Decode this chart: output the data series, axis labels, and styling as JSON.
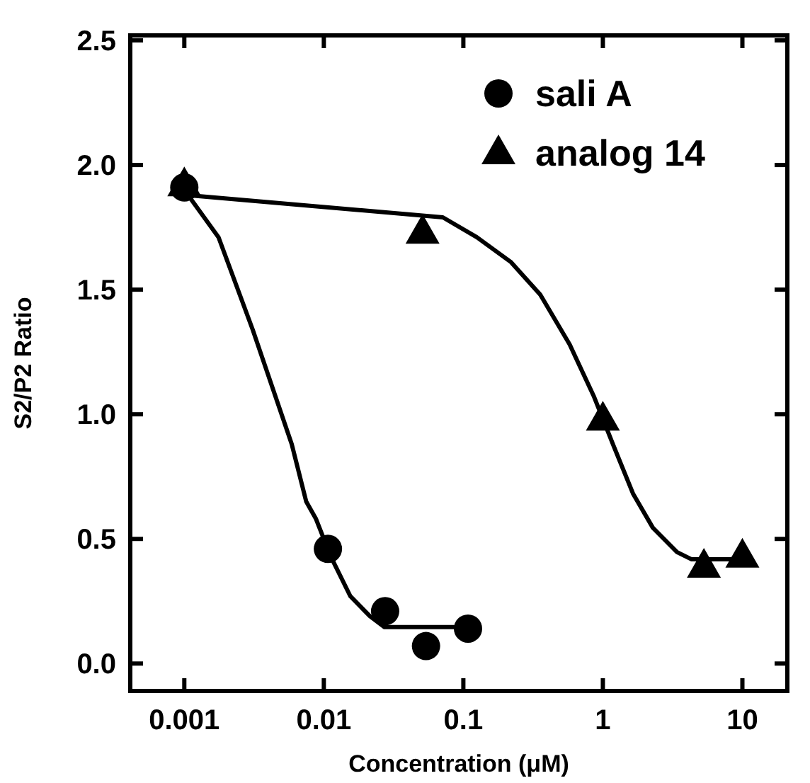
{
  "chart_data": {
    "type": "scatter",
    "xlabel": "Concentration (μM)",
    "ylabel": "S2/P2 Ratio",
    "log": "x",
    "xlim": [
      0.00041,
      21
    ],
    "xticks": [
      0.001,
      0.01,
      0.1,
      1,
      10
    ],
    "ylim": [
      -0.11,
      2.52
    ],
    "yticks": [
      {
        "value": 0,
        "label": "0.0"
      },
      0.5,
      {
        "value": 1,
        "label": "1.0"
      },
      1.5,
      {
        "value": 2,
        "label": "2.0"
      },
      2.5
    ],
    "grid": false,
    "legend": "top right",
    "series": [
      {
        "type": "line",
        "color": "#000000",
        "marker": "none",
        "x": [
          0.001,
          0.00176,
          0.00309,
          0.00589,
          0.00748,
          0.00879,
          0.0112,
          0.0155,
          0.0214,
          0.0272,
          0.111
        ],
        "values": [
          1.9,
          1.71,
          1.34,
          0.88,
          0.65,
          0.58,
          0.43,
          0.27,
          0.19,
          0.146,
          0.146
        ]
      },
      {
        "type": "line",
        "color": "#000000",
        "marker": "none",
        "x": [
          0.001,
          0.0713,
          0.125,
          0.22,
          0.356,
          0.578,
          0.865,
          1.19,
          1.65,
          2.28,
          3.4,
          4.33,
          10.5
        ],
        "values": [
          1.88,
          1.79,
          1.71,
          1.61,
          1.48,
          1.28,
          1.07,
          0.875,
          0.68,
          0.545,
          0.447,
          0.418,
          0.418
        ]
      },
      {
        "name": "sali A",
        "color": "#000000",
        "marker": "circle",
        "x": [
          0.001,
          0.0107,
          0.0275,
          0.054,
          0.108
        ],
        "values": [
          1.91,
          0.46,
          0.21,
          0.07,
          0.14
        ]
      },
      {
        "name": "analog 14",
        "color": "#000000",
        "marker": "triangle",
        "x": [
          0.001,
          0.051,
          1.0,
          5.3,
          10
        ],
        "values": [
          1.92,
          1.73,
          0.98,
          0.39,
          0.43
        ]
      }
    ]
  }
}
